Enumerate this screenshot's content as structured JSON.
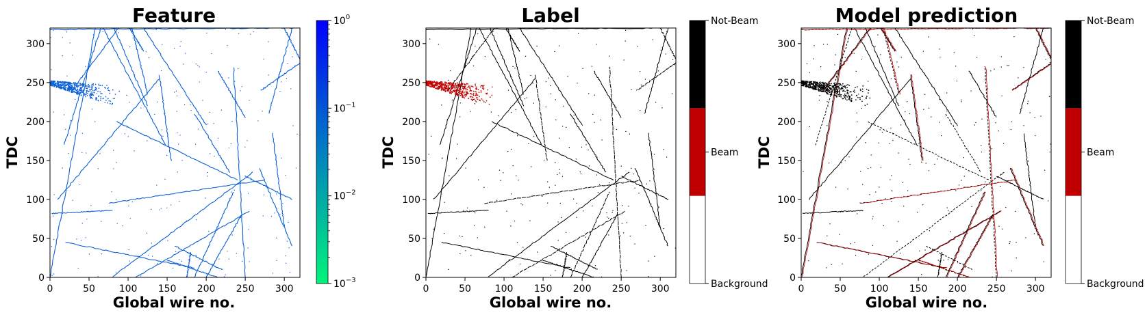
{
  "chart_data": [
    {
      "type": "heatmap",
      "title": "Feature",
      "xlabel": "Global wire no.",
      "ylabel": "TDC",
      "xlim": [
        0,
        320
      ],
      "ylim": [
        0,
        320
      ],
      "xticks": [
        "0",
        "50",
        "100",
        "150",
        "200",
        "250",
        "300"
      ],
      "yticks": [
        "0",
        "50",
        "100",
        "150",
        "200",
        "250",
        "300"
      ],
      "grid": false,
      "track_color": "#0a5fd6",
      "colorbar": {
        "scale": "log",
        "range": [
          0.001,
          1
        ],
        "tick_labels": [
          {
            "base": "10",
            "exp": "0"
          },
          {
            "base": "10",
            "exp": "−1"
          },
          {
            "base": "10",
            "exp": "−2"
          },
          {
            "base": "10",
            "exp": "−3"
          }
        ],
        "colors": [
          "#00f57a",
          "#0080c0",
          "#0000ff"
        ]
      }
    },
    {
      "type": "heatmap",
      "title": "Label",
      "xlabel": "Global wire no.",
      "ylabel": "TDC",
      "xlim": [
        0,
        320
      ],
      "ylim": [
        0,
        320
      ],
      "xticks": [
        "0",
        "50",
        "100",
        "150",
        "200",
        "250",
        "300"
      ],
      "yticks": [
        "0",
        "50",
        "100",
        "150",
        "200",
        "250",
        "300"
      ],
      "grid": false,
      "track_color": "#000000",
      "beam_color": "#c00000",
      "colorbar": {
        "scale": "categorical",
        "categories": [
          "Background",
          "Beam",
          "Not-Beam"
        ],
        "colors": [
          "#ffffff",
          "#c00000",
          "#000000"
        ]
      }
    },
    {
      "type": "heatmap",
      "title": "Model prediction",
      "xlabel": "Global wire no.",
      "ylabel": "TDC",
      "xlim": [
        0,
        320
      ],
      "ylim": [
        0,
        320
      ],
      "xticks": [
        "0",
        "50",
        "100",
        "150",
        "200",
        "250",
        "300"
      ],
      "yticks": [
        "0",
        "50",
        "100",
        "150",
        "200",
        "250",
        "300"
      ],
      "grid": false,
      "track_color": "#000000",
      "beam_color": "#c00000",
      "colorbar": {
        "scale": "categorical",
        "categories": [
          "Background",
          "Beam",
          "Not-Beam"
        ],
        "colors": [
          "#ffffff",
          "#c00000",
          "#000000"
        ]
      }
    }
  ],
  "event_tracks": [
    {
      "x1": 0,
      "y1": 0,
      "x2": 58,
      "y2": 320
    },
    {
      "x1": 18,
      "y1": 170,
      "x2": 65,
      "y2": 320
    },
    {
      "x1": 28,
      "y1": 240,
      "x2": 88,
      "y2": 320
    },
    {
      "x1": 82,
      "y1": 320,
      "x2": 125,
      "y2": 220
    },
    {
      "x1": 105,
      "y1": 320,
      "x2": 125,
      "y2": 235
    },
    {
      "x1": 68,
      "y1": 320,
      "x2": 148,
      "y2": 170
    },
    {
      "x1": 140,
      "y1": 260,
      "x2": 155,
      "y2": 150
    },
    {
      "x1": 85,
      "y1": 200,
      "x2": 240,
      "y2": 125
    },
    {
      "x1": 102,
      "y1": 320,
      "x2": 120,
      "y2": 290
    },
    {
      "x1": 10,
      "y1": 100,
      "x2": 140,
      "y2": 255
    },
    {
      "x1": 75,
      "y1": 95,
      "x2": 275,
      "y2": 125
    },
    {
      "x1": 2,
      "y1": 82,
      "x2": 80,
      "y2": 86
    },
    {
      "x1": 20,
      "y1": 45,
      "x2": 185,
      "y2": 12
    },
    {
      "x1": 80,
      "y1": 1,
      "x2": 260,
      "y2": 135
    },
    {
      "x1": 110,
      "y1": 0,
      "x2": 255,
      "y2": 85
    },
    {
      "x1": 120,
      "y1": 320,
      "x2": 200,
      "y2": 195
    },
    {
      "x1": 150,
      "y1": 22,
      "x2": 215,
      "y2": 0
    },
    {
      "x1": 175,
      "y1": 0,
      "x2": 180,
      "y2": 32
    },
    {
      "x1": 185,
      "y1": 0,
      "x2": 235,
      "y2": 110
    },
    {
      "x1": 185,
      "y1": 210,
      "x2": 230,
      "y2": 135
    },
    {
      "x1": 200,
      "y1": 0,
      "x2": 245,
      "y2": 80
    },
    {
      "x1": 215,
      "y1": 265,
      "x2": 250,
      "y2": 205
    },
    {
      "x1": 250,
      "y1": 0,
      "x2": 235,
      "y2": 270
    },
    {
      "x1": 285,
      "y1": 185,
      "x2": 300,
      "y2": 65
    },
    {
      "x1": 268,
      "y1": 140,
      "x2": 310,
      "y2": 40
    },
    {
      "x1": 160,
      "y1": 40,
      "x2": 220,
      "y2": 10
    },
    {
      "x1": 300,
      "y1": 320,
      "x2": 320,
      "y2": 280
    },
    {
      "x1": 310,
      "y1": 320,
      "x2": 280,
      "y2": 210
    },
    {
      "x1": 0,
      "y1": 318,
      "x2": 320,
      "y2": 320
    },
    {
      "x1": 250,
      "y1": 130,
      "x2": 310,
      "y2": 100
    },
    {
      "x1": 320,
      "y1": 275,
      "x2": 270,
      "y2": 240
    }
  ],
  "beam_cluster": {
    "x_range": [
      0,
      90
    ],
    "y_range": [
      225,
      258
    ],
    "center_slope": -0.2
  }
}
